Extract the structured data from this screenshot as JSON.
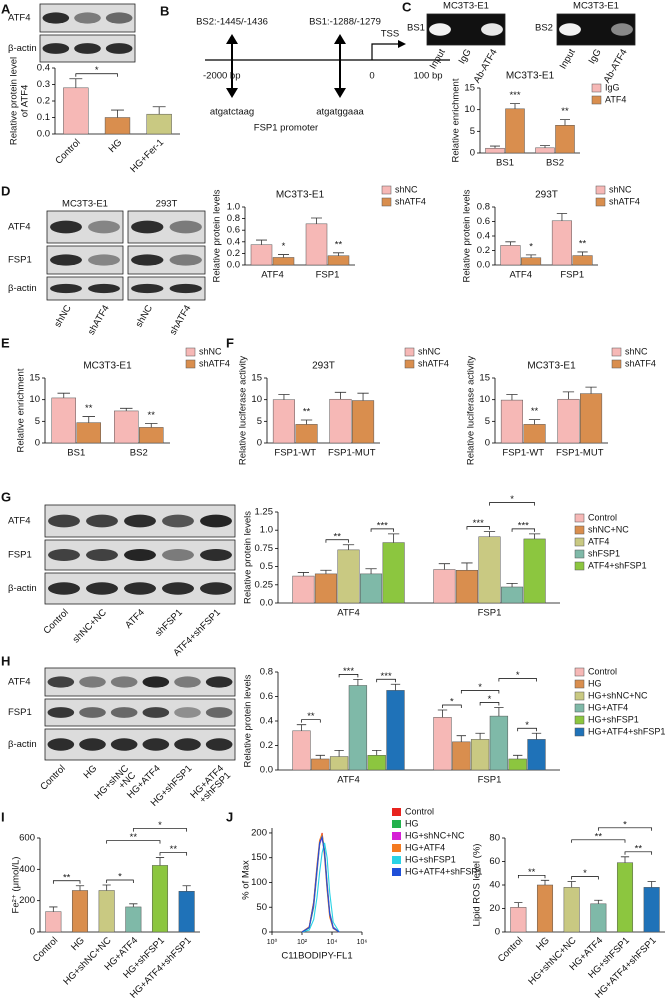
{
  "panels": [
    "A",
    "B",
    "C",
    "D",
    "E",
    "F",
    "G",
    "H",
    "I",
    "J"
  ],
  "promoter": {
    "sites": [
      "BS2:-1445/-1436",
      "BS1:-1288/-1279"
    ],
    "tss": "TSS",
    "scale": [
      "-2000 bp",
      "0",
      "100 bp"
    ],
    "sequences": [
      "atgatctaag",
      "atgatggaaa"
    ],
    "name": "FSP1 promoter"
  },
  "blots": [
    {
      "rows": [
        "ATF4",
        "β-actin"
      ]
    },
    {
      "label": "BS1",
      "cell": "MC3T3-E1",
      "lanes": [
        "Input",
        "IgG",
        "Ab-ATF4"
      ]
    },
    {
      "label": "BS2",
      "cell": "MC3T3-E1",
      "lanes": [
        "Input",
        "IgG",
        "Ab-ATF4"
      ]
    },
    {
      "cell": "MC3T3-E1",
      "rows": [
        "ATF4",
        "FSP1",
        "β-actin"
      ],
      "lanes": [
        "shNC",
        "shATF4"
      ]
    },
    {
      "cell": "293T",
      "lanes": [
        "shNC",
        "shATF4"
      ]
    },
    {
      "rows": [
        "ATF4",
        "FSP1",
        "β-actin"
      ],
      "lanes": [
        "Control",
        "shNC+NC",
        "ATF4",
        "shFSP1",
        "ATF4+shFSP1"
      ]
    },
    {
      "rows": [
        "ATF4",
        "FSP1",
        "β-actin"
      ],
      "lanes": [
        [
          "Control"
        ],
        [
          "HG"
        ],
        [
          "HG+shNC",
          "+NC"
        ],
        [
          "HG+ATF4"
        ],
        [
          "HG+shFSP1"
        ],
        [
          "HG+ATF4",
          "+shFSP1"
        ]
      ]
    }
  ],
  "chart_data": [
    {
      "type": "bar",
      "y_label": [
        "Relative protein level",
        "of ATF4"
      ],
      "categories": [
        "Control",
        "HG",
        "HG+Fer-1"
      ],
      "values": [
        0.28,
        0.1,
        0.12
      ],
      "errors": [
        0.055,
        0.045,
        0.045
      ],
      "colors": [
        "#f6b8b6",
        "#d98e4e",
        "#c9c982"
      ],
      "ylim": [
        0,
        0.4
      ],
      "yticks": [
        {
          "value": 0,
          "label": "0.0"
        },
        0.1,
        0.2,
        0.3,
        0.4
      ],
      "annotations": [
        "*"
      ]
    },
    {
      "type": "bar",
      "title": "MC3T3-E1",
      "y_label": "Relative enrichment",
      "categories": [
        "BS1",
        "BS2"
      ],
      "series": [
        {
          "name": "IgG",
          "color": "#f6b8b6",
          "values": [
            1.1,
            1.2
          ],
          "errors": [
            0.5,
            0.5
          ]
        },
        {
          "name": "ATF4",
          "color": "#d98e4e",
          "values": [
            10.2,
            6.4
          ],
          "errors": [
            1.2,
            1.3
          ]
        }
      ],
      "ylim": [
        0,
        15
      ],
      "yticks": [
        0,
        5,
        10,
        15
      ],
      "annotations": [
        "***",
        "**"
      ]
    },
    {
      "type": "bar",
      "title": "MC3T3-E1",
      "y_label": "Relative protein levels",
      "categories": [
        "ATF4",
        "FSP1"
      ],
      "series": [
        {
          "name": "shNC",
          "color": "#f6b8b6",
          "values": [
            0.35,
            0.71
          ],
          "errors": [
            0.08,
            0.1
          ]
        },
        {
          "name": "shATF4",
          "color": "#d98e4e",
          "values": [
            0.13,
            0.16
          ],
          "errors": [
            0.05,
            0.05
          ]
        }
      ],
      "ylim": [
        0,
        1
      ],
      "yticks": [
        {
          "value": 0,
          "label": "0.0"
        },
        0.2,
        0.4,
        0.6,
        0.8,
        {
          "value": 1,
          "label": "1.0"
        }
      ],
      "annotations": [
        "*",
        "**"
      ]
    },
    {
      "type": "bar",
      "title": "293T",
      "y_label": "Relative protein levels",
      "categories": [
        "ATF4",
        "FSP1"
      ],
      "series": [
        {
          "name": "shNC",
          "color": "#f6b8b6",
          "values": [
            0.27,
            0.61
          ],
          "errors": [
            0.05,
            0.1
          ]
        },
        {
          "name": "shATF4",
          "color": "#d98e4e",
          "values": [
            0.1,
            0.13
          ],
          "errors": [
            0.04,
            0.05
          ]
        }
      ],
      "ylim": [
        0,
        0.8
      ],
      "yticks": [
        {
          "value": 0,
          "label": "0.0"
        },
        0.2,
        0.4,
        0.6,
        0.8
      ],
      "annotations": [
        "*",
        "**"
      ]
    },
    {
      "type": "bar",
      "title": "MC3T3-E1",
      "y_label": "Relative enrichment",
      "categories": [
        "BS1",
        "BS2"
      ],
      "series": [
        {
          "name": "shNC",
          "color": "#f6b8b6",
          "values": [
            10.4,
            7.4
          ],
          "errors": [
            1.1,
            0.6
          ]
        },
        {
          "name": "shATF4",
          "color": "#d98e4e",
          "values": [
            4.7,
            3.6
          ],
          "errors": [
            1.4,
            0.9
          ]
        }
      ],
      "ylim": [
        0,
        15
      ],
      "yticks": [
        0,
        5,
        10,
        15
      ],
      "annotations": [
        "**",
        "**"
      ]
    },
    {
      "type": "bar",
      "title": "293T",
      "y_label": "Relative luciferase activity",
      "categories": [
        "FSP1-WT",
        "FSP1-MUT"
      ],
      "series": [
        {
          "name": "shNC",
          "color": "#f6b8b6",
          "values": [
            10,
            10.1
          ],
          "errors": [
            1.2,
            1.6
          ]
        },
        {
          "name": "shATF4",
          "color": "#d98e4e",
          "values": [
            4.3,
            9.8
          ],
          "errors": [
            1,
            1.7
          ]
        }
      ],
      "ylim": [
        0,
        15
      ],
      "yticks": [
        0,
        5,
        10,
        15
      ],
      "annotations": [
        "**"
      ]
    },
    {
      "type": "bar",
      "title": "MC3T3-E1",
      "y_label": "Relative luciferase activity",
      "categories": [
        "FSP1-WT",
        "FSP1-MUT"
      ],
      "series": [
        {
          "name": "shNC",
          "color": "#f6b8b6",
          "values": [
            9.9,
            10.1
          ],
          "errors": [
            1.3,
            1.7
          ]
        },
        {
          "name": "shATF4",
          "color": "#d98e4e",
          "values": [
            4.3,
            11.4
          ],
          "errors": [
            1.1,
            1.5
          ]
        }
      ],
      "ylim": [
        0,
        15
      ],
      "yticks": [
        0,
        5,
        10,
        15
      ],
      "annotations": [
        "**"
      ]
    },
    {
      "type": "bar",
      "y_label": "Relative protein levels",
      "categories": [
        "ATF4",
        "FSP1"
      ],
      "series": [
        {
          "name": "Control",
          "color": "#f6b8b6",
          "values": [
            0.37,
            0.46
          ],
          "errors": [
            0.05,
            0.08
          ]
        },
        {
          "name": "shNC+NC",
          "color": "#d98e4e",
          "values": [
            0.4,
            0.45
          ],
          "errors": [
            0.05,
            0.1
          ]
        },
        {
          "name": "ATF4",
          "color": "#c9c982",
          "values": [
            0.73,
            0.91
          ],
          "errors": [
            0.07,
            0.07
          ]
        },
        {
          "name": "shFSP1",
          "color": "#7fb9a8",
          "values": [
            0.4,
            0.22
          ],
          "errors": [
            0.07,
            0.05
          ]
        },
        {
          "name": "ATF4+shFSP1",
          "color": "#8cc63f",
          "values": [
            0.83,
            0.88
          ],
          "errors": [
            0.12,
            0.07
          ]
        }
      ],
      "ylim": [
        0,
        1.25
      ],
      "yticks": [
        {
          "value": 0,
          "label": "0.0"
        },
        0.25,
        0.5,
        0.75,
        {
          "value": 1,
          "label": "1.0"
        },
        1.25
      ],
      "annotations": [
        "**",
        "***",
        "*",
        "***",
        "***"
      ]
    },
    {
      "type": "bar",
      "y_label": "Relative protein levels",
      "categories": [
        "ATF4",
        "FSP1"
      ],
      "series": [
        {
          "name": "Control",
          "color": "#f6b8b6",
          "values": [
            0.32,
            0.43
          ],
          "errors": [
            0.05,
            0.06
          ]
        },
        {
          "name": "HG",
          "color": "#d98e4e",
          "values": [
            0.09,
            0.23
          ],
          "errors": [
            0.03,
            0.05
          ]
        },
        {
          "name": "HG+shNC+NC",
          "color": "#c9c982",
          "values": [
            0.11,
            0.25
          ],
          "errors": [
            0.05,
            0.05
          ]
        },
        {
          "name": "HG+ATF4",
          "color": "#7fb9a8",
          "values": [
            0.69,
            0.44
          ],
          "errors": [
            0.05,
            0.07
          ]
        },
        {
          "name": "HG+shFSP1",
          "color": "#8cc63f",
          "values": [
            0.12,
            0.09
          ],
          "errors": [
            0.04,
            0.03
          ]
        },
        {
          "name": "HG+ATF4+shFSP1",
          "color": "#1f72b8",
          "values": [
            0.65,
            0.25
          ],
          "errors": [
            0.05,
            0.05
          ]
        }
      ],
      "ylim": [
        0,
        0.8
      ],
      "yticks": [
        {
          "value": 0,
          "label": "0.0"
        },
        0.2,
        0.4,
        0.6,
        0.8
      ],
      "annotations": [
        "**",
        "***",
        "***",
        "*",
        "*",
        "*",
        "*",
        "*"
      ]
    },
    {
      "type": "bar",
      "y_label": "Fe²⁺ (μmol/L)",
      "categories": [
        "Control",
        "HG",
        "HG+shNC+NC",
        "HG+ATF4",
        "HG+shFSP1",
        "HG+ATF4+shFSP1"
      ],
      "values": [
        130,
        265,
        265,
        160,
        425,
        260
      ],
      "errors": [
        30,
        30,
        35,
        20,
        50,
        35
      ],
      "colors": [
        "#f6b8b6",
        "#d98e4e",
        "#c9c982",
        "#7fb9a8",
        "#8cc63f",
        "#1f72b8"
      ],
      "ylim": [
        0,
        600
      ],
      "yticks": [
        0,
        200,
        400,
        600
      ],
      "annotations": [
        "**",
        "*",
        "**",
        "*",
        "**"
      ]
    },
    {
      "type": "line",
      "x_label": "C11BODIPY-FL1",
      "y_label": "% of Max",
      "xscale": "log",
      "x": [
        100,
        300,
        600,
        1000,
        1500,
        2200,
        3200,
        4700,
        7000,
        12000,
        30000
      ],
      "series": [
        {
          "name": "Control",
          "color": "#e8231e",
          "values": [
            0,
            10,
            60,
            130,
            180,
            200,
            160,
            90,
            35,
            8,
            0
          ]
        },
        {
          "name": "HG",
          "color": "#22b14c",
          "values": [
            0,
            8,
            50,
            120,
            175,
            195,
            165,
            100,
            40,
            10,
            0
          ]
        },
        {
          "name": "HG+shNC+NC",
          "color": "#d61fd6",
          "values": [
            0,
            9,
            55,
            125,
            178,
            190,
            160,
            95,
            38,
            9,
            0
          ]
        },
        {
          "name": "HG+ATF4",
          "color": "#f47a20",
          "values": [
            0,
            10,
            62,
            135,
            185,
            198,
            150,
            85,
            30,
            7,
            0
          ]
        },
        {
          "name": "HG+shFSP1",
          "color": "#29d3e6",
          "values": [
            0,
            4,
            25,
            70,
            120,
            160,
            180,
            150,
            80,
            20,
            0
          ]
        },
        {
          "name": "HG+ATF4+shFSP1",
          "color": "#1f4fd8",
          "values": [
            0,
            9,
            58,
            128,
            180,
            192,
            158,
            92,
            36,
            8,
            0
          ]
        }
      ],
      "xlim": [
        1,
        1000000
      ],
      "xticks": [
        {
          "value": 1,
          "label": "10⁰"
        },
        {
          "value": 100,
          "label": "10²"
        },
        {
          "value": 10000,
          "label": "10⁴"
        },
        {
          "value": 1000000,
          "label": "10⁶"
        }
      ],
      "ylim": [
        0,
        210
      ],
      "yticks": [
        0,
        50,
        100,
        150,
        200
      ]
    },
    {
      "type": "bar",
      "y_label": "Lipid ROS level (%)",
      "categories": [
        "Control",
        "HG",
        "HG+shNC+NC",
        "HG+ATF4",
        "HG+shFSP1",
        "HG+ATF4+shFSP1"
      ],
      "values": [
        21,
        40,
        38,
        24,
        59,
        38
      ],
      "errors": [
        4,
        4,
        5,
        3,
        5,
        5
      ],
      "colors": [
        "#f6b8b6",
        "#d98e4e",
        "#c9c982",
        "#7fb9a8",
        "#8cc63f",
        "#1f72b8"
      ],
      "ylim": [
        0,
        80
      ],
      "yticks": [
        0,
        20,
        40,
        60,
        80
      ],
      "annotations": [
        "**",
        "*",
        "**",
        "*",
        "**"
      ]
    }
  ]
}
